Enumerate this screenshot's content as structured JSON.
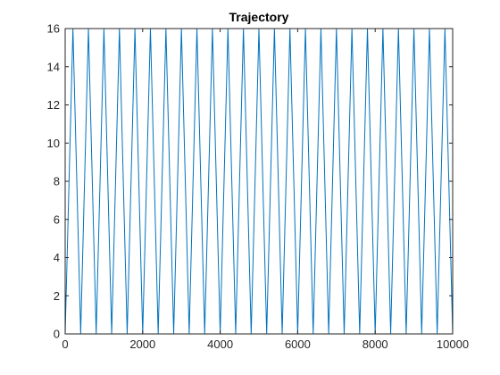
{
  "chart_data": {
    "type": "line",
    "title": "Trajectory",
    "xlabel": "",
    "ylabel": "",
    "xlim": [
      0,
      10000
    ],
    "ylim": [
      0,
      16
    ],
    "x_ticks": [
      0,
      2000,
      4000,
      6000,
      8000,
      10000
    ],
    "y_ticks": [
      0,
      2,
      4,
      6,
      8,
      10,
      12,
      14,
      16
    ],
    "grid": false,
    "legend": "none",
    "series": [
      {
        "color": "#0072BD",
        "shape": "triangle-wave",
        "period": 400,
        "min": 0,
        "max": 16,
        "x": [
          0,
          200,
          400,
          600,
          800,
          1000,
          1200,
          1400,
          1600,
          1800,
          2000,
          2200,
          2400,
          2600,
          2800,
          3000,
          3200,
          3400,
          3600,
          3800,
          4000,
          4200,
          4400,
          4600,
          4800,
          5000,
          5200,
          5400,
          5600,
          5800,
          6000,
          6200,
          6400,
          6600,
          6800,
          7000,
          7200,
          7400,
          7600,
          7800,
          8000,
          8200,
          8400,
          8600,
          8800,
          9000,
          9200,
          9400,
          9600,
          9800,
          10000
        ],
        "y": [
          0,
          16,
          0,
          16,
          0,
          16,
          0,
          16,
          0,
          16,
          0,
          16,
          0,
          16,
          0,
          16,
          0,
          16,
          0,
          16,
          0,
          16,
          0,
          16,
          0,
          16,
          0,
          16,
          0,
          16,
          0,
          16,
          0,
          16,
          0,
          16,
          0,
          16,
          0,
          16,
          0,
          16,
          0,
          16,
          0,
          16,
          0,
          16,
          0,
          16,
          0
        ]
      }
    ]
  }
}
